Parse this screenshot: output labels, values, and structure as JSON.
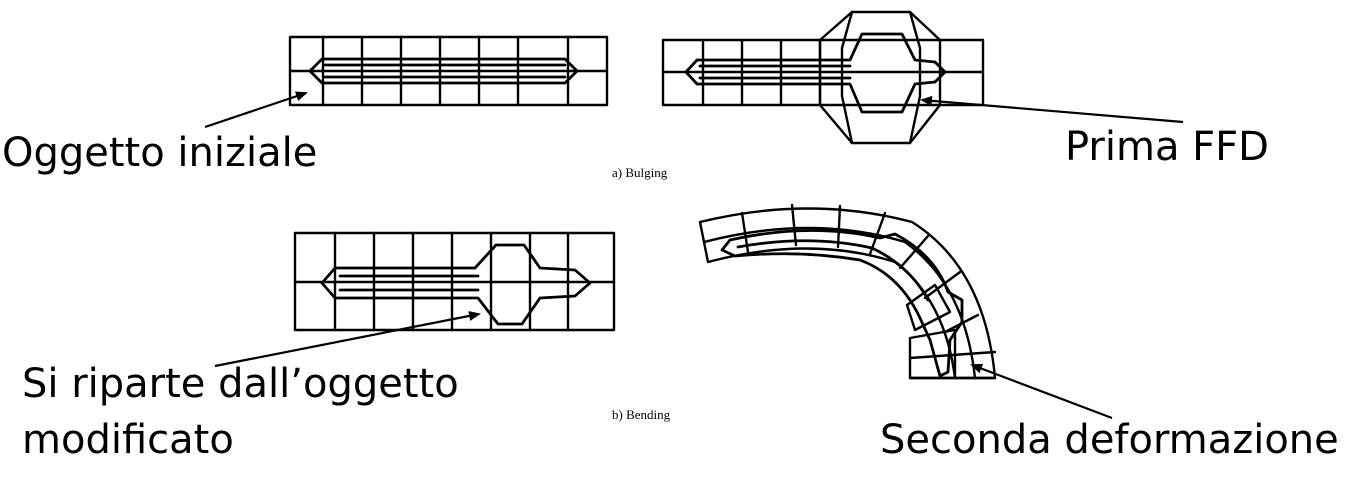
{
  "labels": {
    "initial_object": "Oggetto iniziale",
    "first_ffd": "Prima FFD",
    "restart_line1": "Si riparte dall’oggetto",
    "restart_line2": "modificato",
    "second_deformation": "Seconda deformazione"
  },
  "captions": {
    "bulging": "a) Bulging",
    "bending": "b) Bending"
  }
}
